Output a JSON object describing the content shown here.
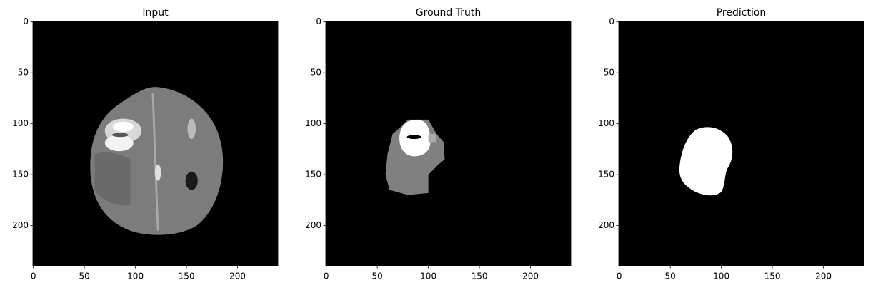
{
  "chart_data": [
    {
      "type": "image",
      "title": "Input",
      "xlim": [
        -0.5,
        239.5
      ],
      "ylim": [
        239.5,
        -0.5
      ],
      "xticks": [
        0,
        50,
        100,
        150,
        200
      ],
      "yticks": [
        0,
        50,
        100,
        150,
        200
      ]
    },
    {
      "type": "image",
      "title": "Ground Truth",
      "xlim": [
        -0.5,
        239.5
      ],
      "ylim": [
        239.5,
        -0.5
      ],
      "xticks": [
        0,
        50,
        100,
        150,
        200
      ],
      "yticks": [
        0,
        50,
        100,
        150,
        200
      ]
    },
    {
      "type": "image",
      "title": "Prediction",
      "xlim": [
        -0.5,
        239.5
      ],
      "ylim": [
        239.5,
        -0.5
      ],
      "xticks": [
        0,
        50,
        100,
        150,
        200
      ],
      "yticks": [
        0,
        50,
        100,
        150,
        200
      ]
    }
  ]
}
